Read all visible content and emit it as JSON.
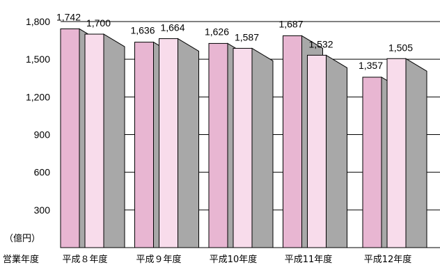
{
  "chart_data": {
    "type": "bar",
    "unit_label": "（億円）",
    "xaxis_label": "営業年度",
    "categories": [
      "平成８年度",
      "平成９年度",
      "平成10年度",
      "平成11年度",
      "平成12年度"
    ],
    "series": [
      {
        "values": [
          1742,
          1636,
          1626,
          1687,
          1357
        ],
        "color": "#e8b6d2"
      },
      {
        "values": [
          1700,
          1664,
          1587,
          1532,
          1505
        ],
        "color": "#f8dceb"
      }
    ],
    "value_labels": [
      [
        "1,742",
        "1,636",
        "1,626",
        "1,687",
        "1,357"
      ],
      [
        "1,700",
        "1,664",
        "1,587",
        "1,532",
        "1,505"
      ]
    ],
    "yticks": [
      300,
      600,
      900,
      1200,
      1500,
      1800
    ],
    "ytick_labels": [
      "300",
      "600",
      "900",
      "1,200",
      "1,500",
      "1,800"
    ],
    "ylim": [
      0,
      1800
    ],
    "shadow_color": "#a8a8a8",
    "grid": true
  }
}
